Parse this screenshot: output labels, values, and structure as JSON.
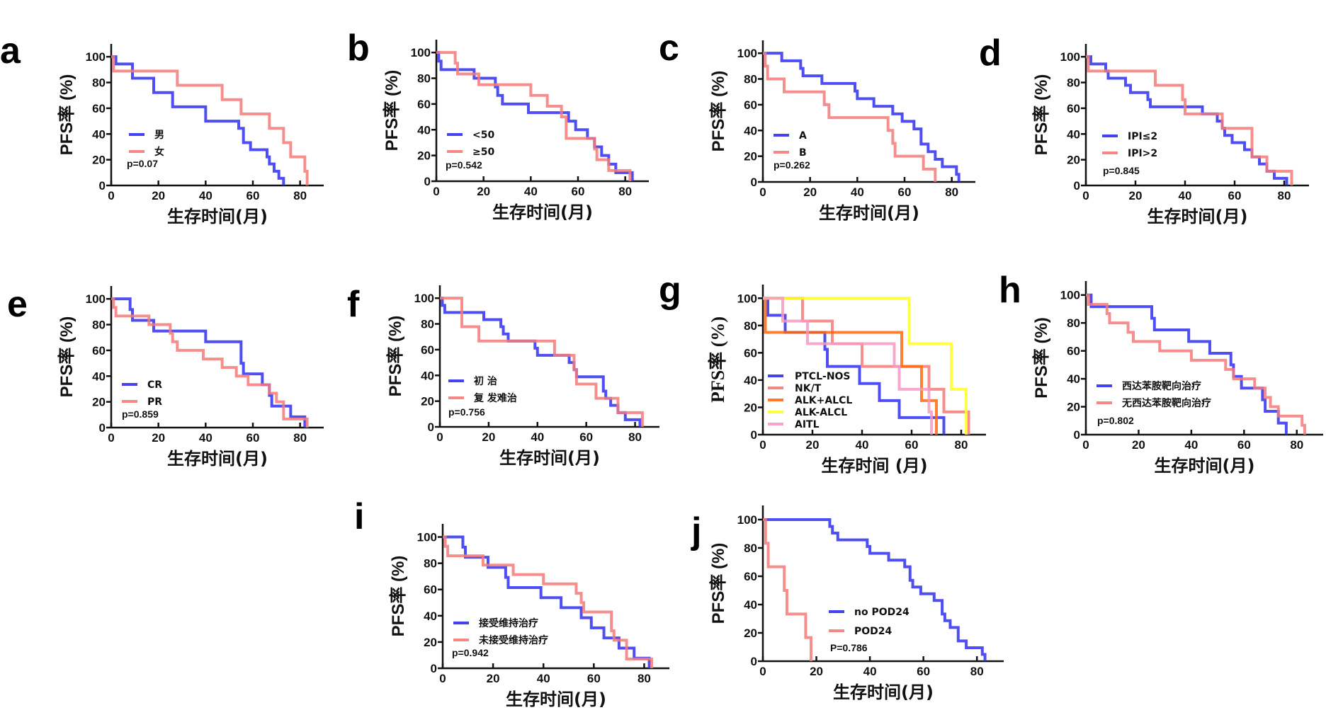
{
  "figure": {
    "colors": {
      "blue": "#2f2ff0",
      "red": "#f47a7a",
      "orange": "#ff6a10",
      "yellow": "#ffff22",
      "pink": "#f59ac4"
    }
  },
  "chart_data": [
    {
      "id": "a",
      "type": "line",
      "subtype": "kaplan-meier step",
      "panel_label": "a",
      "xlabel": "生存时间(月)",
      "ylabel": "PFS率 (%)",
      "xlim": [
        0,
        90
      ],
      "ylim": [
        0,
        110
      ],
      "xticks": [
        0,
        20,
        40,
        60,
        80
      ],
      "yticks": [
        0,
        20,
        40,
        60,
        80,
        100
      ],
      "legend_position": "bottom-left",
      "p_value_text": "p=0.07",
      "series": [
        {
          "name": "男",
          "color": "#2f2ff0",
          "x": [
            0,
            2,
            8,
            9,
            16,
            18,
            25,
            26,
            39,
            40,
            53,
            54,
            56,
            59,
            63,
            66,
            67,
            69,
            71,
            73
          ],
          "y": [
            100,
            94.4,
            94.4,
            83.3,
            83.3,
            72.2,
            72.2,
            61.1,
            61.1,
            50,
            50,
            44.4,
            33.3,
            27.8,
            27.8,
            22.2,
            16.7,
            11.1,
            5.6,
            0
          ]
        },
        {
          "name": "女",
          "color": "#f47a7a",
          "x": [
            0,
            1,
            28,
            47,
            55,
            67,
            73,
            76,
            82,
            83
          ],
          "y": [
            100,
            88.9,
            77.8,
            66.7,
            55.6,
            44.4,
            33.3,
            22.2,
            11.1,
            0
          ]
        }
      ]
    },
    {
      "id": "b",
      "type": "line",
      "subtype": "kaplan-meier step",
      "panel_label": "b",
      "xlabel": "生存时间(月)",
      "ylabel": "PFS率 (%)",
      "xlim": [
        0,
        90
      ],
      "ylim": [
        0,
        110
      ],
      "xticks": [
        0,
        20,
        40,
        60,
        80
      ],
      "yticks": [
        0,
        20,
        40,
        60,
        80,
        100
      ],
      "legend_position": "bottom-left",
      "p_value_text": "p=0.542",
      "series": [
        {
          "name": "<50",
          "color": "#2f2ff0",
          "x": [
            0,
            1,
            2,
            16,
            25,
            26,
            28,
            39,
            56,
            59,
            64,
            67,
            70,
            73,
            76,
            83
          ],
          "y": [
            100,
            93.3,
            86.7,
            80,
            73.3,
            66.7,
            60,
            53.3,
            46.7,
            40,
            33.3,
            26.7,
            20,
            13.3,
            6.7,
            0
          ]
        },
        {
          "name": "≥50",
          "color": "#f47a7a",
          "x": [
            0,
            8,
            9,
            18,
            40,
            47,
            53,
            55,
            64,
            67,
            68,
            73,
            82
          ],
          "y": [
            100,
            91.7,
            83.3,
            75,
            66.7,
            58.3,
            50,
            33.3,
            33.3,
            25,
            16.7,
            8.3,
            0
          ]
        }
      ]
    },
    {
      "id": "c",
      "type": "line",
      "subtype": "kaplan-meier step",
      "panel_label": "c",
      "xlabel": "生存时间(月)",
      "ylabel": "PFS率 (%)",
      "xlim": [
        0,
        90
      ],
      "ylim": [
        0,
        110
      ],
      "xticks": [
        0,
        20,
        40,
        60,
        80
      ],
      "yticks": [
        0,
        20,
        40,
        60,
        80,
        100
      ],
      "legend_position": "bottom-left",
      "p_value_text": "p=0.262",
      "series": [
        {
          "name": "A",
          "color": "#2f2ff0",
          "x": [
            0,
            8,
            16,
            17,
            25,
            39,
            40,
            47,
            55,
            59,
            64,
            67,
            70,
            73,
            76,
            82,
            83
          ],
          "y": [
            100,
            94.1,
            88.2,
            82.4,
            76.5,
            70.6,
            64.7,
            58.8,
            52.9,
            47.1,
            41.2,
            29.4,
            23.5,
            17.6,
            11.8,
            5.9,
            0
          ]
        },
        {
          "name": "B",
          "color": "#f47a7a",
          "x": [
            0,
            1,
            2,
            9,
            26,
            28,
            53,
            55,
            56,
            68,
            73
          ],
          "y": [
            100,
            90,
            80,
            70,
            60,
            50,
            40,
            30,
            20,
            10,
            0
          ]
        }
      ]
    },
    {
      "id": "d",
      "type": "line",
      "subtype": "kaplan-meier step",
      "panel_label": "d",
      "xlabel": "生存时间(月)",
      "ylabel": "PFS率 (%)",
      "xlim": [
        0,
        90
      ],
      "ylim": [
        0,
        110
      ],
      "xticks": [
        0,
        20,
        40,
        60,
        80
      ],
      "yticks": [
        0,
        20,
        40,
        60,
        80,
        100
      ],
      "legend_position": "bottom-left",
      "p_value_text": "p=0.845",
      "series": [
        {
          "name": "IPI≤2",
          "color": "#2f2ff0",
          "x": [
            0,
            2,
            8,
            9,
            16,
            18,
            25,
            26,
            47,
            53,
            55,
            56,
            59,
            64,
            67,
            70,
            73,
            76,
            81
          ],
          "y": [
            100,
            94.4,
            88.9,
            83.3,
            77.8,
            72.2,
            66.7,
            61.1,
            55.6,
            50,
            44.4,
            38.9,
            33.3,
            27.8,
            22.2,
            16.7,
            11.1,
            5.6,
            0
          ]
        },
        {
          "name": "IPI>2",
          "color": "#f47a7a",
          "x": [
            0,
            1,
            28,
            39,
            40,
            55,
            67,
            73,
            83
          ],
          "y": [
            100,
            88.9,
            77.8,
            66.7,
            55.6,
            44.4,
            22.2,
            11.1,
            0
          ]
        }
      ]
    },
    {
      "id": "e",
      "type": "line",
      "subtype": "kaplan-meier step",
      "panel_label": "e",
      "xlabel": "生存时间(月)",
      "ylabel": "PFS率 (%)",
      "xlim": [
        0,
        90
      ],
      "ylim": [
        0,
        110
      ],
      "xticks": [
        0,
        20,
        40,
        60,
        80
      ],
      "yticks": [
        0,
        20,
        40,
        60,
        80,
        100
      ],
      "legend_position": "bottom-left",
      "p_value_text": "p=0.859",
      "series": [
        {
          "name": "CR",
          "color": "#2f2ff0",
          "x": [
            0,
            8,
            9,
            17,
            18,
            40,
            55,
            56,
            64,
            67,
            68,
            76,
            82
          ],
          "y": [
            100,
            91.7,
            83.3,
            83.3,
            75,
            66.7,
            50,
            41.7,
            33.3,
            25,
            16.7,
            8.3,
            0
          ]
        },
        {
          "name": "PR",
          "color": "#f47a7a",
          "x": [
            0,
            1,
            2,
            16,
            25,
            26,
            28,
            39,
            47,
            53,
            58,
            67,
            70,
            73,
            83
          ],
          "y": [
            100,
            93.3,
            86.7,
            80,
            73.3,
            66.7,
            60,
            53.3,
            46.7,
            40,
            33.3,
            26.7,
            20,
            6.7,
            0
          ]
        }
      ]
    },
    {
      "id": "f",
      "type": "line",
      "subtype": "kaplan-meier step",
      "panel_label": "f",
      "xlabel": "生存时间(月)",
      "ylabel": "PFS率 (%)",
      "xlim": [
        0,
        90
      ],
      "ylim": [
        0,
        110
      ],
      "xticks": [
        0,
        20,
        40,
        60,
        80
      ],
      "yticks": [
        0,
        20,
        40,
        60,
        80,
        100
      ],
      "legend_position": "bottom-left",
      "p_value_text": "p=0.756",
      "series": [
        {
          "name": "初 治",
          "color": "#2f2ff0",
          "x": [
            0,
            1,
            2,
            18,
            25,
            26,
            28,
            39,
            40,
            53,
            55,
            56,
            59,
            67,
            68,
            70,
            73,
            76,
            82
          ],
          "y": [
            100,
            94.4,
            88.9,
            83.3,
            77.8,
            72.2,
            66.7,
            61.1,
            55.6,
            50,
            44.4,
            38.9,
            38.9,
            27.8,
            22.2,
            16.7,
            11.1,
            5.6,
            0
          ]
        },
        {
          "name": "复 发难治",
          "color": "#f47a7a",
          "x": [
            0,
            9,
            16,
            47,
            55,
            56,
            64,
            73,
            83
          ],
          "y": [
            100,
            77.8,
            66.7,
            55.6,
            44.4,
            33.3,
            22.2,
            11.1,
            0
          ]
        }
      ]
    },
    {
      "id": "g",
      "type": "line",
      "subtype": "kaplan-meier step",
      "panel_label": "g",
      "xlabel": "生存时间 (月)",
      "ylabel": "PFS率 (%)",
      "xlim": [
        0,
        90
      ],
      "ylim": [
        0,
        110
      ],
      "xticks": [
        0,
        20,
        40,
        60,
        80
      ],
      "yticks": [
        0,
        20,
        40,
        60,
        80,
        100
      ],
      "legend_position": "bottom-left",
      "p_value_text": "",
      "series": [
        {
          "name": "PTCL-NOS",
          "color": "#2f2ff0",
          "x": [
            0,
            2,
            9,
            25,
            26,
            39,
            47,
            55,
            73
          ],
          "y": [
            100,
            87.5,
            75,
            62.5,
            50,
            37.5,
            25,
            12.5,
            0
          ]
        },
        {
          "name": "NK/T",
          "color": "#f47a7a",
          "x": [
            0,
            16,
            28,
            40,
            67,
            73,
            83
          ],
          "y": [
            100,
            83.3,
            66.7,
            50,
            33.3,
            16.7,
            0
          ]
        },
        {
          "name": "ALK+ALCL",
          "color": "#ff6a10",
          "x": [
            0,
            1,
            56,
            64,
            70
          ],
          "y": [
            100,
            75,
            50,
            25,
            0
          ]
        },
        {
          "name": "ALK-ALCL",
          "color": "#ffff22",
          "x": [
            0,
            59,
            76,
            82
          ],
          "y": [
            100,
            66.7,
            33.3,
            0
          ]
        },
        {
          "name": "AITL",
          "color": "#f59ac4",
          "x": [
            0,
            8,
            18,
            53,
            55,
            67,
            68
          ],
          "y": [
            100,
            83.3,
            66.7,
            50,
            33.3,
            16.7,
            0
          ]
        }
      ]
    },
    {
      "id": "h",
      "type": "line",
      "subtype": "kaplan-meier step",
      "panel_label": "h",
      "xlabel": "生存时间(月)",
      "ylabel": "PFS率 (%)",
      "xlim": [
        0,
        90
      ],
      "ylim": [
        0,
        110
      ],
      "xticks": [
        0,
        20,
        40,
        60,
        80
      ],
      "yticks": [
        0,
        20,
        40,
        60,
        80,
        100
      ],
      "legend_position": "bottom-left",
      "p_value_text": "p=0.802",
      "series": [
        {
          "name": "西达苯胺靶向治疗",
          "color": "#2f2ff0",
          "x": [
            0,
            2,
            25,
            26,
            39,
            47,
            55,
            56,
            59,
            67,
            68,
            73,
            76
          ],
          "y": [
            100,
            91.7,
            83.3,
            75,
            66.7,
            58.3,
            50,
            41.7,
            33.3,
            25,
            16.7,
            8.3,
            0
          ]
        },
        {
          "name": "无西达苯胺靶向治疗",
          "color": "#f47a7a",
          "x": [
            0,
            1,
            8,
            9,
            16,
            18,
            28,
            40,
            53,
            56,
            64,
            68,
            70,
            73,
            82,
            83
          ],
          "y": [
            100,
            93.3,
            86.7,
            80,
            73.3,
            66.7,
            60,
            53.3,
            46.7,
            40,
            33.3,
            26.7,
            20,
            13.3,
            6.7,
            0
          ]
        }
      ]
    },
    {
      "id": "i",
      "type": "line",
      "subtype": "kaplan-meier step",
      "panel_label": "i",
      "xlabel": "生存时间(月)",
      "ylabel": "PFS率 (%)",
      "xlim": [
        0,
        90
      ],
      "ylim": [
        0,
        110
      ],
      "xticks": [
        0,
        20,
        40,
        60,
        80
      ],
      "yticks": [
        0,
        20,
        40,
        60,
        80,
        100
      ],
      "legend_position": "bottom-left",
      "p_value_text": "p=0.942",
      "series": [
        {
          "name": "接受维持治疗",
          "color": "#2f2ff0",
          "x": [
            0,
            8,
            9,
            18,
            25,
            26,
            39,
            47,
            55,
            59,
            64,
            70,
            76,
            82
          ],
          "y": [
            100,
            92.3,
            84.6,
            76.9,
            69.2,
            61.5,
            53.8,
            46.2,
            38.5,
            30.8,
            23.1,
            15.4,
            7.7,
            0
          ]
        },
        {
          "name": "未接受维持治疗",
          "color": "#f47a7a",
          "x": [
            0,
            1,
            2,
            16,
            28,
            40,
            53,
            55,
            56,
            67,
            68,
            73,
            83
          ],
          "y": [
            100,
            92.9,
            85.7,
            78.6,
            71.4,
            64.3,
            57.1,
            50,
            42.9,
            28.6,
            21.4,
            7.1,
            0
          ]
        }
      ]
    },
    {
      "id": "j",
      "type": "line",
      "subtype": "kaplan-meier step",
      "panel_label": "j",
      "xlabel": "生存时间(月)",
      "ylabel": "PFS率 (%)",
      "xlim": [
        0,
        90
      ],
      "ylim": [
        0,
        110
      ],
      "xticks": [
        0,
        20,
        40,
        60,
        80
      ],
      "yticks": [
        0,
        20,
        40,
        60,
        80,
        100
      ],
      "legend_position": "bottom-center",
      "p_value_text": "P=0.786",
      "series": [
        {
          "name": "no POD24",
          "color": "#2f2ff0",
          "x": [
            0,
            25,
            26,
            28,
            39,
            40,
            47,
            53,
            55,
            56,
            59,
            64,
            67,
            68,
            70,
            73,
            76,
            82,
            83
          ],
          "y": [
            100,
            95.2,
            90.5,
            85.7,
            81,
            76.2,
            71.4,
            66.7,
            57.1,
            52.4,
            47.6,
            42.9,
            33.3,
            28.6,
            23.8,
            14.3,
            9.5,
            4.8,
            0
          ]
        },
        {
          "name": "POD24",
          "color": "#f47a7a",
          "x": [
            0,
            1,
            2,
            8,
            9,
            16,
            18
          ],
          "y": [
            100,
            83.3,
            66.7,
            50,
            33.3,
            16.7,
            0
          ]
        }
      ]
    }
  ]
}
